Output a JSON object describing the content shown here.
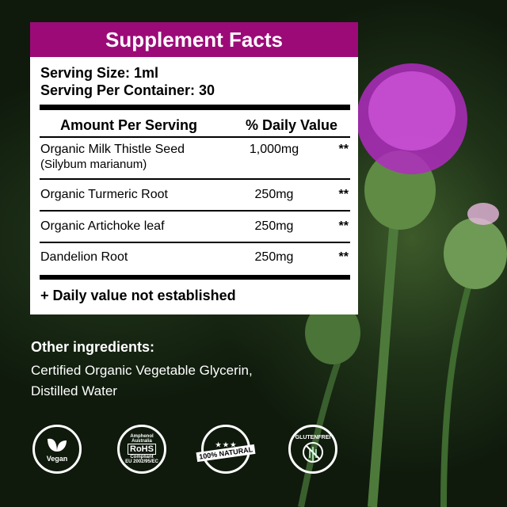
{
  "panel": {
    "title": "Supplement Facts",
    "serving_size": "Serving Size: 1ml",
    "servings_per_container": "Serving Per Container: 30",
    "col_amount": "Amount Per Serving",
    "col_dv": "% Daily Value",
    "rows": [
      {
        "name": "Organic Milk Thistle Seed",
        "sub": "(Silybum marianum)",
        "amount": "1,000mg",
        "dv": "**"
      },
      {
        "name": "Organic Turmeric Root",
        "amount": "250mg",
        "dv": "**"
      },
      {
        "name": "Organic Artichoke leaf",
        "amount": "250mg",
        "dv": "**"
      },
      {
        "name": "Dandelion Root",
        "amount": "250mg",
        "dv": "**"
      }
    ],
    "footnote": "+ Daily value not established",
    "header_color": "#9c0a78"
  },
  "other_ingredients": {
    "heading": "Other ingredients:",
    "line1": "Certified Organic Vegetable Glycerin,",
    "line2": "Distilled Water"
  },
  "badges": [
    {
      "icon": "leaf-icon",
      "label": "Vegan"
    },
    {
      "icon": "rohs-check-icon",
      "label": "RoHS",
      "top": "Amphenol Australia",
      "bottom": "EU 2002/95/EC",
      "sub": "Compliant"
    },
    {
      "icon": "star-icon",
      "label": "100% NATURAL"
    },
    {
      "icon": "wheat-crossed-icon",
      "label": "GLUTENFREI"
    }
  ]
}
